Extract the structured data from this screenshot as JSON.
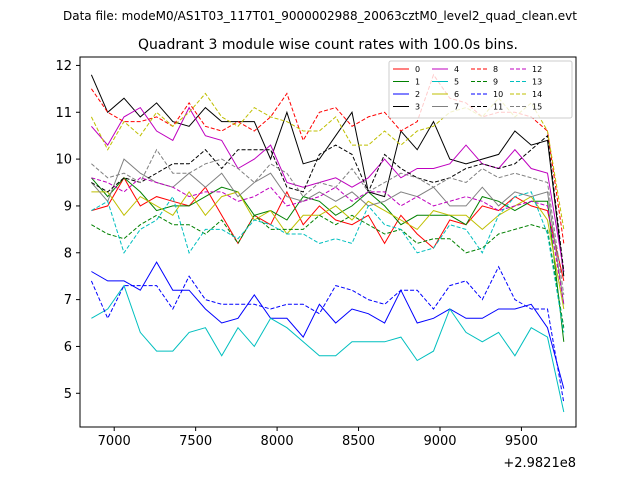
{
  "suptitle": "Data file: modeM0/AS1T03_117T01_9000002988_20063cztM0_level2_quad_clean.evt",
  "chart_data": {
    "type": "line",
    "title": "Quadrant 3 module wise count rates with 100.0s bins.",
    "xlabel": "",
    "ylabel": "",
    "x_offset_label": "+2.9821e8",
    "xlim": [
      6790,
      9835
    ],
    "ylim": [
      4.28,
      12.18
    ],
    "xticks": [
      7000,
      7500,
      8000,
      8500,
      9000,
      9500
    ],
    "yticks": [
      5,
      6,
      7,
      8,
      9,
      10,
      11,
      12
    ],
    "grid": false,
    "legend_position": "top-right",
    "x": [
      6860,
      6960,
      7060,
      7160,
      7260,
      7360,
      7460,
      7560,
      7660,
      7760,
      7860,
      7960,
      8060,
      8160,
      8260,
      8360,
      8460,
      8560,
      8660,
      8760,
      8860,
      8960,
      9060,
      9160,
      9260,
      9360,
      9460,
      9560,
      9660,
      9760
    ],
    "series": [
      {
        "name": "0",
        "color": "#ff0000",
        "dash": "solid",
        "values": [
          8.9,
          9.0,
          9.6,
          9.0,
          9.2,
          9.1,
          9.0,
          9.4,
          8.8,
          8.2,
          8.8,
          8.6,
          9.3,
          8.6,
          9.0,
          8.7,
          8.6,
          8.8,
          8.2,
          8.8,
          8.4,
          8.1,
          8.7,
          8.6,
          9.0,
          8.9,
          9.2,
          9.0,
          8.9,
          7.4
        ]
      },
      {
        "name": "1",
        "color": "#008000",
        "dash": "solid",
        "values": [
          9.6,
          9.2,
          9.6,
          9.3,
          8.9,
          9.0,
          9.0,
          9.2,
          9.4,
          9.3,
          8.8,
          8.9,
          8.7,
          9.2,
          9.1,
          8.8,
          9.0,
          9.3,
          9.0,
          8.6,
          8.8,
          8.8,
          8.8,
          8.6,
          9.2,
          9.1,
          8.9,
          9.1,
          9.1,
          6.1
        ]
      },
      {
        "name": "2",
        "color": "#0000ff",
        "dash": "solid",
        "values": [
          7.6,
          7.4,
          7.4,
          7.2,
          7.8,
          7.2,
          7.2,
          6.8,
          6.5,
          6.6,
          7.1,
          6.6,
          6.6,
          6.2,
          6.9,
          6.5,
          6.8,
          6.7,
          6.5,
          7.2,
          6.5,
          6.6,
          6.8,
          6.6,
          6.6,
          6.8,
          6.8,
          6.9,
          6.4,
          5.1
        ]
      },
      {
        "name": "3",
        "color": "#000000",
        "dash": "solid",
        "values": [
          11.8,
          11.0,
          11.3,
          10.9,
          11.2,
          10.8,
          10.7,
          11.1,
          10.8,
          10.8,
          10.8,
          10.0,
          11.0,
          9.9,
          10.0,
          10.5,
          11.0,
          9.3,
          9.2,
          10.6,
          10.2,
          10.8,
          10.0,
          9.9,
          10.0,
          10.1,
          10.6,
          10.3,
          10.4,
          7.5
        ]
      },
      {
        "name": "4",
        "color": "#bf00bf",
        "dash": "solid",
        "values": [
          10.7,
          10.3,
          10.9,
          11.1,
          10.6,
          10.4,
          11.1,
          10.5,
          10.4,
          9.8,
          10.0,
          10.3,
          9.5,
          9.4,
          9.5,
          9.6,
          9.4,
          9.6,
          10.0,
          9.6,
          9.8,
          9.8,
          9.9,
          10.3,
          9.9,
          9.8,
          10.2,
          9.8,
          9.7,
          7.6
        ]
      },
      {
        "name": "5",
        "color": "#00bfbf",
        "dash": "solid",
        "values": [
          6.6,
          6.8,
          7.3,
          6.3,
          5.9,
          5.9,
          6.3,
          6.4,
          5.8,
          6.4,
          6.0,
          6.6,
          6.4,
          6.1,
          5.8,
          5.8,
          6.1,
          6.1,
          6.1,
          6.2,
          5.7,
          5.9,
          6.8,
          6.3,
          6.1,
          6.3,
          5.8,
          6.4,
          6.2,
          4.6
        ]
      },
      {
        "name": "6",
        "color": "#bfbf00",
        "dash": "solid",
        "values": [
          9.3,
          9.3,
          8.8,
          9.2,
          9.0,
          8.8,
          9.3,
          8.8,
          9.2,
          9.3,
          8.7,
          8.9,
          8.4,
          8.8,
          8.8,
          9.0,
          8.7,
          9.1,
          8.9,
          8.7,
          8.5,
          8.9,
          8.8,
          8.8,
          8.5,
          8.8,
          9.0,
          9.2,
          8.7,
          6.8
        ]
      },
      {
        "name": "7",
        "color": "#808080",
        "dash": "solid",
        "values": [
          9.5,
          9.1,
          10.0,
          9.7,
          9.5,
          9.4,
          9.7,
          9.4,
          9.7,
          9.2,
          9.5,
          9.7,
          9.2,
          9.1,
          9.3,
          9.1,
          9.3,
          9.0,
          9.1,
          9.3,
          9.2,
          9.4,
          9.0,
          9.0,
          9.4,
          9.0,
          9.3,
          9.2,
          9.3,
          6.9
        ]
      },
      {
        "name": "8",
        "color": "#ff0000",
        "dash": "dashed",
        "values": [
          11.5,
          11.0,
          10.8,
          10.8,
          10.9,
          10.7,
          11.2,
          10.7,
          10.6,
          10.8,
          10.6,
          10.9,
          11.4,
          10.4,
          11.0,
          11.1,
          10.7,
          10.9,
          11.0,
          10.6,
          10.8,
          11.8,
          11.3,
          11.2,
          10.9,
          11.0,
          11.0,
          10.9,
          10.6,
          8.2
        ]
      },
      {
        "name": "9",
        "color": "#008000",
        "dash": "dashed",
        "values": [
          8.6,
          8.4,
          8.3,
          8.6,
          8.8,
          8.6,
          8.6,
          8.4,
          8.7,
          8.2,
          8.8,
          8.5,
          8.5,
          8.5,
          8.8,
          8.6,
          8.8,
          8.6,
          8.4,
          8.5,
          8.2,
          8.3,
          8.3,
          8.0,
          8.1,
          8.4,
          8.5,
          8.6,
          8.5,
          6.4
        ]
      },
      {
        "name": "10",
        "color": "#0000ff",
        "dash": "dashed",
        "values": [
          7.4,
          6.6,
          7.3,
          7.3,
          7.3,
          6.8,
          7.5,
          7.0,
          6.9,
          6.9,
          6.9,
          6.8,
          6.9,
          6.9,
          6.7,
          7.3,
          7.2,
          7.0,
          6.9,
          7.2,
          7.2,
          6.8,
          7.3,
          7.4,
          7.0,
          7.7,
          7.0,
          6.8,
          6.8,
          4.8
        ]
      },
      {
        "name": "11",
        "color": "#000000",
        "dash": "dashed",
        "values": [
          9.5,
          9.3,
          9.6,
          9.5,
          9.7,
          9.9,
          9.9,
          10.2,
          9.8,
          10.2,
          10.2,
          10.2,
          9.4,
          9.3,
          10.1,
          10.3,
          10.1,
          9.3,
          10.1,
          9.8,
          9.6,
          9.5,
          9.6,
          9.8,
          9.9,
          9.8,
          9.9,
          10.2,
          10.5,
          7.6
        ]
      },
      {
        "name": "12",
        "color": "#bf00bf",
        "dash": "dashed",
        "values": [
          9.6,
          9.5,
          9.3,
          9.6,
          9.5,
          9.4,
          9.2,
          9.3,
          9.3,
          9.1,
          9.2,
          9.4,
          9.0,
          9.1,
          9.2,
          9.4,
          9.1,
          9.3,
          9.3,
          9.0,
          9.2,
          9.0,
          9.1,
          9.2,
          9.1,
          8.9,
          9.0,
          9.1,
          9.0,
          6.9
        ]
      },
      {
        "name": "13",
        "color": "#00bfbf",
        "dash": "dashed",
        "values": [
          8.9,
          9.1,
          8.0,
          8.5,
          8.7,
          9.2,
          8.0,
          8.5,
          8.5,
          8.3,
          8.7,
          8.6,
          8.4,
          8.4,
          8.2,
          8.3,
          8.2,
          9.0,
          8.6,
          8.5,
          8.0,
          8.1,
          8.6,
          8.5,
          8.0,
          8.8,
          9.2,
          9.3,
          8.4,
          6.3
        ]
      },
      {
        "name": "14",
        "color": "#bfbf00",
        "dash": "dashed",
        "values": [
          10.9,
          10.2,
          10.8,
          10.5,
          11.0,
          10.7,
          11.0,
          11.4,
          10.9,
          10.7,
          11.1,
          10.9,
          10.8,
          10.6,
          10.6,
          10.9,
          10.3,
          10.3,
          10.6,
          10.3,
          10.6,
          10.7,
          11.0,
          11.1,
          10.9,
          11.3,
          10.9,
          11.2,
          10.6,
          8.5
        ]
      },
      {
        "name": "15",
        "color": "#808080",
        "dash": "dashed",
        "values": [
          9.9,
          9.6,
          9.7,
          9.5,
          10.2,
          9.7,
          9.7,
          9.9,
          10.0,
          9.8,
          9.5,
          9.9,
          9.7,
          9.2,
          9.5,
          9.4,
          9.8,
          9.3,
          9.5,
          9.7,
          9.6,
          9.4,
          9.6,
          9.5,
          9.8,
          9.6,
          9.7,
          9.6,
          9.5,
          7.1
        ]
      }
    ]
  }
}
